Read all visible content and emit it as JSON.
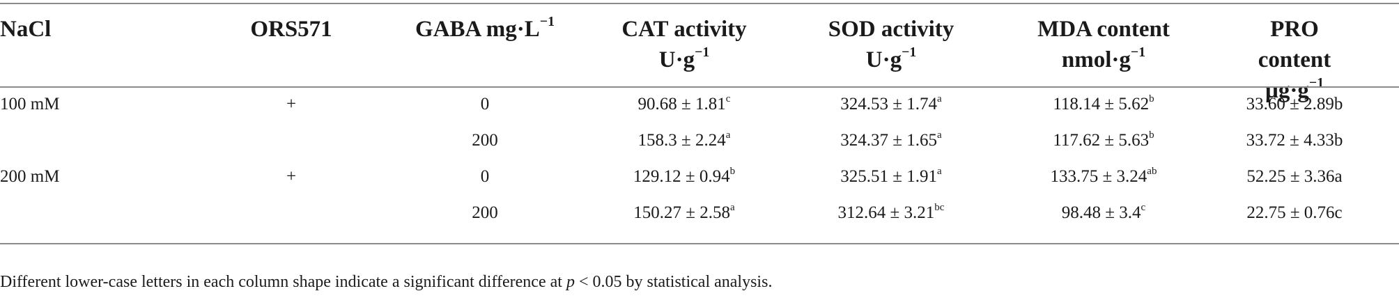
{
  "table": {
    "headers": [
      {
        "line1": "NaCl",
        "line2": ""
      },
      {
        "line1": "ORS571",
        "line2": ""
      },
      {
        "line1": "GABA mg·L",
        "line1_sup": "−1",
        "line2": ""
      },
      {
        "line1": "CAT activity",
        "line2": "U·g",
        "line2_sup": "−1"
      },
      {
        "line1": "SOD activity",
        "line2": "U·g",
        "line2_sup": "−1"
      },
      {
        "line1": "MDA content",
        "line2": "nmol·g",
        "line2_sup": "−1"
      },
      {
        "line1": "PRO content",
        "line2": "µg·g",
        "line2_sup": "−1"
      }
    ],
    "rows": [
      {
        "nacl": "100 mM",
        "ors": "+",
        "gaba": "0",
        "cat": "90.68 ± 1.81",
        "cat_sup": "c",
        "sod": "324.53 ± 1.74",
        "sod_sup": "a",
        "mda": "118.14 ± 5.62",
        "mda_sup": "b",
        "pro": "33.60 ± 2.89b"
      },
      {
        "nacl": "",
        "ors": "",
        "gaba": "200",
        "cat": "158.3 ± 2.24",
        "cat_sup": "a",
        "sod": "324.37 ± 1.65",
        "sod_sup": "a",
        "mda": "117.62 ± 5.63",
        "mda_sup": "b",
        "pro": "33.72 ± 4.33b"
      },
      {
        "nacl": "200 mM",
        "ors": "+",
        "gaba": "0",
        "cat": "129.12 ± 0.94",
        "cat_sup": "b",
        "sod": "325.51 ± 1.91",
        "sod_sup": "a",
        "mda": "133.75 ± 3.24",
        "mda_sup": "ab",
        "pro": "52.25 ± 3.36a"
      },
      {
        "nacl": "",
        "ors": "",
        "gaba": "200",
        "cat": "150.27 ± 2.58",
        "cat_sup": "a",
        "sod": "312.64 ± 3.21",
        "sod_sup": "bc",
        "mda": "98.48 ± 3.4",
        "mda_sup": "c",
        "pro": "22.75 ± 0.76c"
      }
    ],
    "footnote": {
      "before": "Different lower-case letters in each column shape indicate a significant difference at ",
      "italic": "p",
      "after": " < 0.05 by statistical analysis."
    }
  }
}
